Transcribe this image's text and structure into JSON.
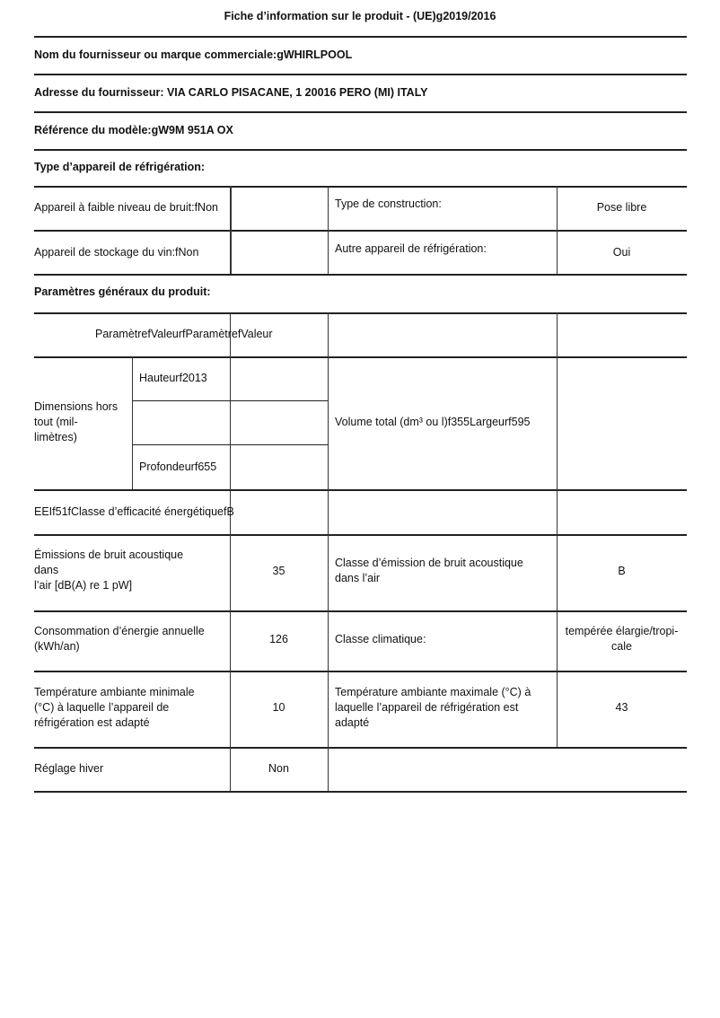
{
  "title": "Fiche d’information sur le produit - (UE)g2019/2016",
  "supplier_name": "Nom du fournisseur ou marque commerciale:gWHIRLPOOL",
  "supplier_address": "Adresse du fournisseur: VIA CARLO PISACANE, 1 20016 PERO (MI) ITALY",
  "model_reference": "Référence du modèle:gW9M 951A OX",
  "appliance_type_heading": "Type d’appareil de réfrigération:",
  "appliance_type": {
    "low_noise": "Appareil à faible niveau de bruit:fNon",
    "construction_label": "Type de construction:",
    "construction_value": "Pose libre",
    "wine_storage": "Appareil de stockage du vin:fNon",
    "other_label": "Autre appareil de réfrigération:",
    "other_value": "Oui"
  },
  "general_heading": "Paramètres généraux du produit:",
  "general": {
    "header_row": "ParamètrefValeurfParamètrefValeur",
    "dimensions_label": "Dimensions hors\ntout (mil-\nlimètres)",
    "height": "Hauteurf2013",
    "depth": "Profondeurf655",
    "volume": "Volume total (dm³ ou l)f355Largeurf595",
    "eei": "EEIf51fClasse d’efficacité énergétiquefB",
    "rows": [
      {
        "label": "Émissions de bruit acoustique\ndans\nl’air [dB(A) re 1 pW]",
        "value": "35",
        "label2": "Classe d’émission de bruit acoustique\ndans l’air",
        "value2": "B"
      },
      {
        "label": "Consommation d’énergie annuelle\n(kWh/an)",
        "value": "126",
        "label2": "Classe climatique:",
        "value2": "tempérée élargie/tropi-\ncale"
      },
      {
        "label": "Température ambiante minimale\n(°C) à laquelle l’appareil de\nréfrigération est adapté",
        "value": "10",
        "label2": "Température ambiante maximale (°C) à\nlaquelle l’appareil de réfrigération est\nadapté",
        "value2": "43"
      },
      {
        "label": "Réglage hiver",
        "value": "Non"
      }
    ]
  }
}
